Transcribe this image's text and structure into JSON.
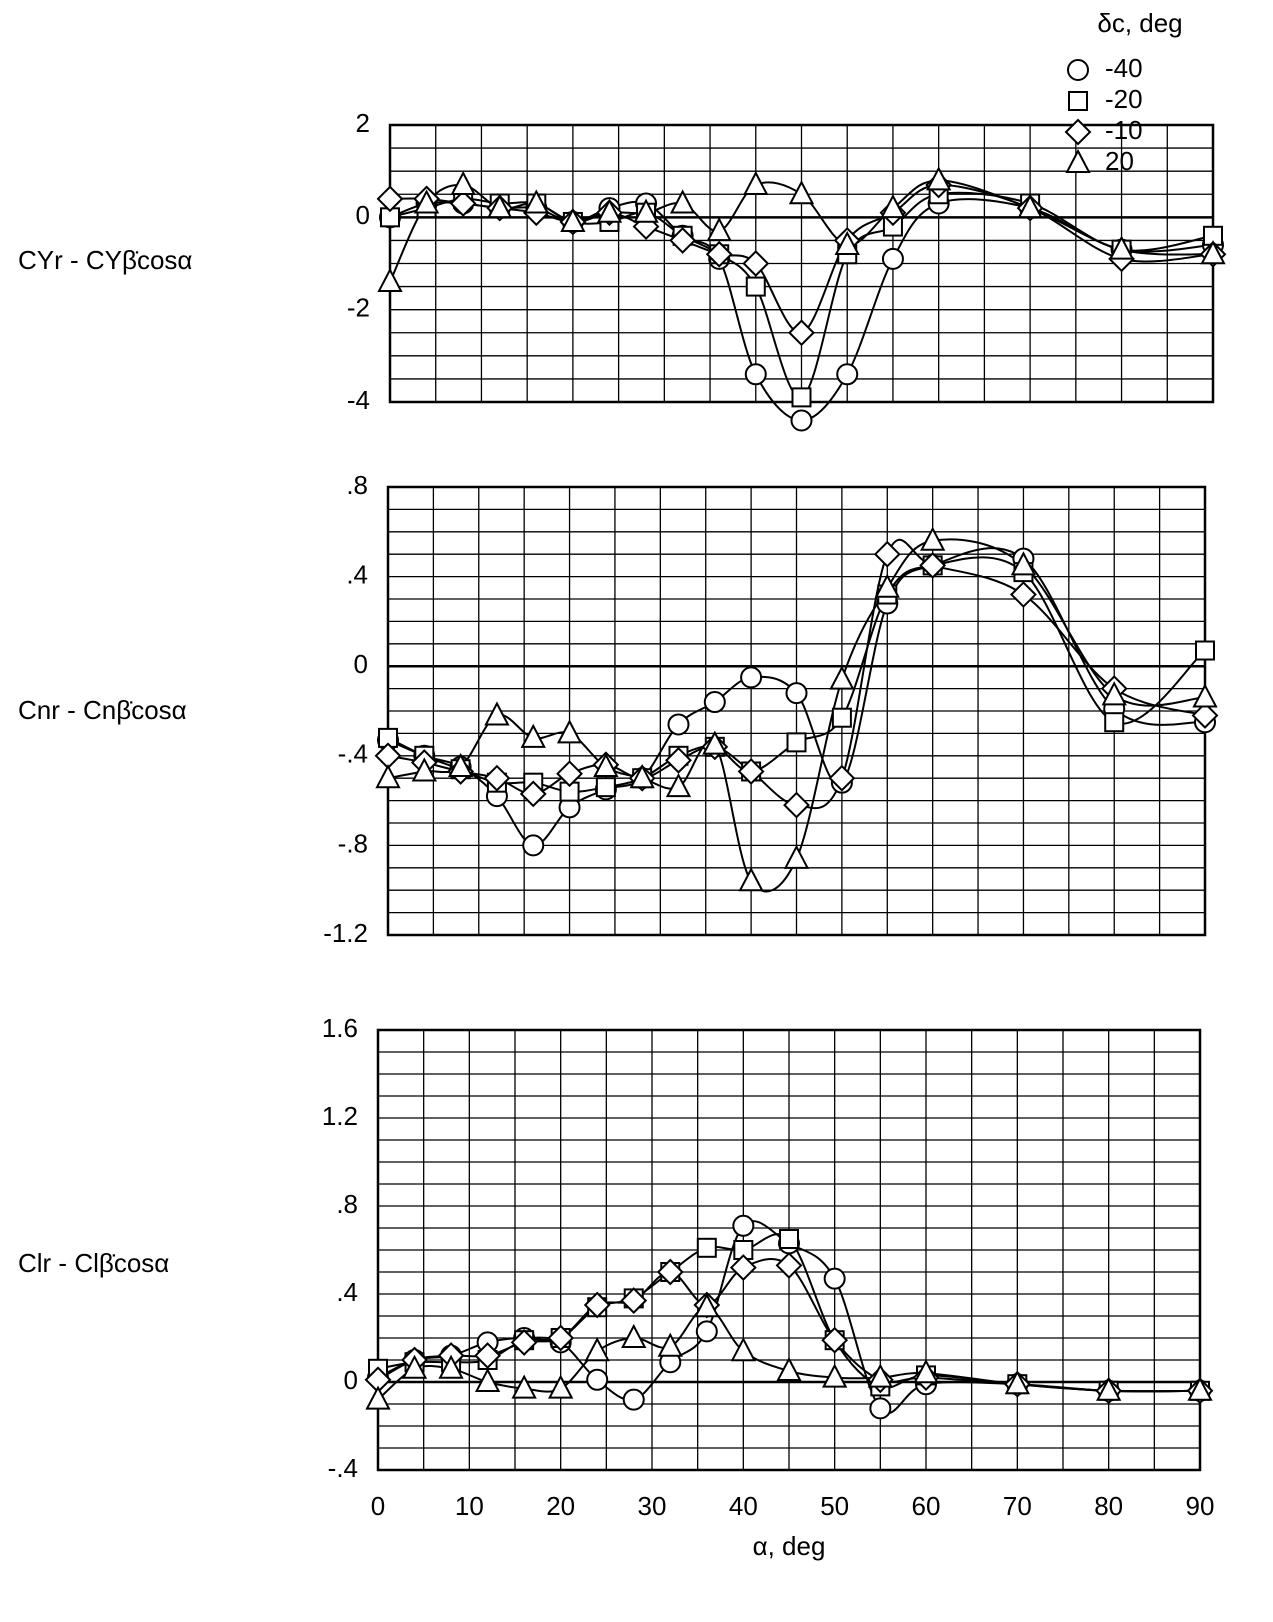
{
  "chart_data": [
    {
      "type": "line",
      "ylabel": "CYr - CYβ̇cosα",
      "legend_title": "δc, deg",
      "legend": "top-right",
      "x": [
        0,
        4,
        8,
        12,
        16,
        20,
        24,
        28,
        32,
        36,
        40,
        45,
        50,
        55,
        60,
        70,
        80,
        90
      ],
      "xlim": [
        0,
        90
      ],
      "xgrid": [
        0,
        5,
        10,
        15,
        20,
        25,
        30,
        35,
        40,
        45,
        50,
        55,
        60,
        65,
        70,
        75,
        80,
        85,
        90
      ],
      "ylim": [
        -4,
        2
      ],
      "yticks": [
        2,
        0,
        -2,
        -4
      ],
      "ygrid": [
        -4,
        -3.5,
        -3,
        -2.5,
        -2,
        -1.5,
        -1,
        -0.5,
        0,
        0.5,
        1,
        1.5,
        2
      ],
      "series": [
        {
          "name": "-40",
          "marker": "circle",
          "color": "#000000",
          "values": [
            0,
            0.3,
            0.3,
            0.2,
            0.2,
            -0.1,
            0.2,
            0.3,
            -0.4,
            -0.9,
            -3.4,
            -4.4,
            -3.4,
            -0.9,
            0.3,
            0.2,
            -0.7,
            -0.6
          ]
        },
        {
          "name": "-20",
          "marker": "square",
          "color": "#000000",
          "values": [
            0,
            0.2,
            0.4,
            0.3,
            0.3,
            -0.1,
            -0.1,
            0.1,
            -0.4,
            -0.8,
            -1.5,
            -3.9,
            -0.8,
            -0.2,
            0.5,
            0.3,
            -0.7,
            -0.4
          ]
        },
        {
          "name": "-10",
          "marker": "diamond",
          "color": "#000000",
          "values": [
            0.4,
            0.4,
            0.3,
            0.2,
            0.1,
            -0.1,
            0.1,
            -0.2,
            -0.5,
            -0.8,
            -1.0,
            -2.5,
            -0.5,
            0.1,
            0.7,
            0.2,
            -0.9,
            -0.8
          ]
        },
        {
          "name": "20",
          "marker": "triangle",
          "color": "#000000",
          "values": [
            -1.4,
            0.3,
            0.7,
            0.2,
            0.3,
            -0.1,
            0.1,
            0.1,
            0.3,
            -0.3,
            0.7,
            0.5,
            -0.6,
            0.2,
            0.8,
            0.2,
            -0.7,
            -0.8
          ]
        }
      ]
    },
    {
      "type": "line",
      "ylabel": "Cnr - Cnβ̇cosα",
      "x": [
        0,
        4,
        8,
        12,
        16,
        20,
        24,
        28,
        32,
        36,
        40,
        45,
        50,
        55,
        60,
        70,
        80,
        90
      ],
      "xlim": [
        0,
        90
      ],
      "xgrid": [
        0,
        5,
        10,
        15,
        20,
        25,
        30,
        35,
        40,
        45,
        50,
        55,
        60,
        65,
        70,
        75,
        80,
        85,
        90
      ],
      "ylim": [
        -1.2,
        0.8
      ],
      "yticks": [
        {
          "value": 0.8,
          "label": ".8"
        },
        {
          "value": 0.4,
          "label": ".4"
        },
        0,
        {
          "value": -0.4,
          "label": "-.4"
        },
        {
          "value": -0.8,
          "label": "-.8"
        },
        -1.2
      ],
      "ygrid": [
        -1.2,
        -1.1,
        -1.0,
        -0.9,
        -0.8,
        -0.7,
        -0.6,
        -0.5,
        -0.4,
        -0.3,
        -0.2,
        -0.1,
        0,
        0.1,
        0.2,
        0.3,
        0.4,
        0.5,
        0.6,
        0.7,
        0.8
      ],
      "series": [
        {
          "name": "-40",
          "marker": "circle",
          "color": "#000000",
          "values": [
            -0.33,
            -0.4,
            -0.45,
            -0.58,
            -0.8,
            -0.63,
            -0.55,
            -0.5,
            -0.26,
            -0.16,
            -0.05,
            -0.12,
            -0.52,
            0.28,
            0.45,
            0.48,
            -0.19,
            -0.25
          ]
        },
        {
          "name": "-20",
          "marker": "square",
          "color": "#000000",
          "values": [
            -0.32,
            -0.4,
            -0.46,
            -0.52,
            -0.52,
            -0.56,
            -0.54,
            -0.5,
            -0.4,
            -0.36,
            -0.47,
            -0.34,
            -0.23,
            0.32,
            0.45,
            0.42,
            -0.25,
            0.07
          ]
        },
        {
          "name": "-10",
          "marker": "diamond",
          "color": "#000000",
          "values": [
            -0.4,
            -0.43,
            -0.47,
            -0.5,
            -0.57,
            -0.48,
            -0.44,
            -0.5,
            -0.42,
            -0.36,
            -0.47,
            -0.62,
            -0.5,
            0.5,
            0.45,
            0.32,
            -0.1,
            -0.22
          ]
        },
        {
          "name": "20",
          "marker": "triangle",
          "color": "#000000",
          "values": [
            -0.5,
            -0.47,
            -0.45,
            -0.22,
            -0.32,
            -0.3,
            -0.45,
            -0.5,
            -0.54,
            -0.35,
            -0.96,
            -0.86,
            -0.06,
            0.35,
            0.56,
            0.45,
            -0.13,
            -0.14
          ]
        }
      ]
    },
    {
      "type": "line",
      "ylabel": "Clr - Clβ̇cosα",
      "xlabel": "α, deg",
      "x": [
        0,
        4,
        8,
        12,
        16,
        20,
        24,
        28,
        32,
        36,
        40,
        45,
        50,
        55,
        60,
        70,
        80,
        90
      ],
      "xlim": [
        0,
        90
      ],
      "xticks": [
        0,
        10,
        20,
        30,
        40,
        50,
        60,
        70,
        80,
        90
      ],
      "xgrid": [
        0,
        5,
        10,
        15,
        20,
        25,
        30,
        35,
        40,
        45,
        50,
        55,
        60,
        65,
        70,
        75,
        80,
        85,
        90
      ],
      "ylim": [
        -0.4,
        1.6
      ],
      "yticks": [
        1.6,
        1.2,
        {
          "value": 0.8,
          "label": ".8"
        },
        {
          "value": 0.4,
          "label": ".4"
        },
        0,
        {
          "value": -0.4,
          "label": "-.4"
        }
      ],
      "ygrid": [
        -0.4,
        -0.3,
        -0.2,
        -0.1,
        0,
        0.1,
        0.2,
        0.3,
        0.4,
        0.5,
        0.6,
        0.7,
        0.8,
        0.9,
        1.0,
        1.1,
        1.2,
        1.3,
        1.4,
        1.5,
        1.6
      ],
      "series": [
        {
          "name": "-40",
          "marker": "circle",
          "color": "#000000",
          "values": [
            0.02,
            0.1,
            0.12,
            0.18,
            0.2,
            0.18,
            0.01,
            -0.08,
            0.09,
            0.23,
            0.71,
            0.63,
            0.47,
            -0.12,
            -0.01,
            -0.01,
            -0.04,
            -0.04
          ]
        },
        {
          "name": "-20",
          "marker": "square",
          "color": "#000000",
          "values": [
            0.06,
            0.09,
            0.09,
            0.1,
            0.19,
            0.2,
            0.34,
            0.38,
            0.5,
            0.61,
            0.6,
            0.65,
            0.19,
            -0.02,
            0.03,
            -0.01,
            -0.04,
            -0.04
          ]
        },
        {
          "name": "-10",
          "marker": "diamond",
          "color": "#000000",
          "values": [
            0.01,
            0.1,
            0.12,
            0.12,
            0.18,
            0.2,
            0.35,
            0.37,
            0.5,
            0.35,
            0.52,
            0.53,
            0.19,
            0.01,
            0.02,
            -0.01,
            -0.04,
            -0.04
          ]
        },
        {
          "name": "20",
          "marker": "triangle",
          "color": "#000000",
          "values": [
            -0.08,
            0.06,
            0.06,
            0,
            -0.03,
            -0.03,
            0.14,
            0.2,
            0.16,
            0.34,
            0.14,
            0.05,
            0.02,
            0.02,
            0.04,
            -0.01,
            -0.04,
            -0.04
          ]
        }
      ]
    }
  ]
}
